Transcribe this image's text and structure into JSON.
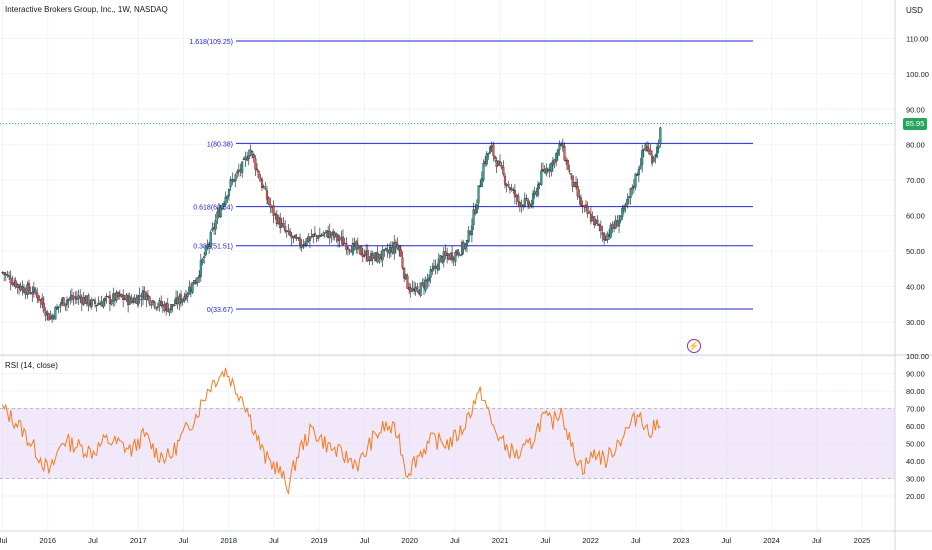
{
  "header": {
    "symbol_title": "Interactive Brokers Group, Inc., 1W, NASDAQ",
    "currency": "USD"
  },
  "price_badge": "85.95",
  "rsi": {
    "title": "RSI (14, close)",
    "band_color": "#e8d9f7",
    "line_color": "#f57c1f",
    "upper": 70,
    "lower": 30
  },
  "colors": {
    "up": "#26a69a",
    "down": "#ef5350",
    "fib": "#2225d4",
    "badge": "#26a65b"
  },
  "icons": {
    "bolt": "lightning-icon"
  },
  "chart_data": {
    "type": "candlestick",
    "x_ticks": [
      "Jul",
      "2016",
      "Jul",
      "2017",
      "Jul",
      "2018",
      "Jul",
      "2019",
      "Jul",
      "2020",
      "Jul",
      "2021",
      "Jul",
      "2022",
      "Jul",
      "2023",
      "Jul",
      "2024",
      "Jul",
      "2025"
    ],
    "price_ticks": [
      "110.00",
      "100.00",
      "90.00",
      "80.00",
      "70.00",
      "60.00",
      "50.00",
      "40.00",
      "30.00"
    ],
    "rsi_ticks": [
      "100.00",
      "90.00",
      "80.00",
      "70.00",
      "60.00",
      "50.00",
      "40.00",
      "30.00",
      "20.00"
    ],
    "fib_levels": [
      {
        "label": "1.618(109.25)",
        "value": 109.25
      },
      {
        "label": "1(80.38)",
        "value": 80.38
      },
      {
        "label": "0.618(62.54)",
        "value": 62.54
      },
      {
        "label": "0.382(51.51)",
        "value": 51.51
      },
      {
        "label": "0(33.67)",
        "value": 33.67
      }
    ],
    "last_price": 85.95,
    "price_path": [
      [
        "2015.50",
        44
      ],
      [
        "2015.70",
        40
      ],
      [
        "2015.90",
        38
      ],
      [
        "2016.05",
        31
      ],
      [
        "2016.20",
        36
      ],
      [
        "2016.40",
        37
      ],
      [
        "2016.55",
        35
      ],
      [
        "2016.70",
        36
      ],
      [
        "2016.85",
        37
      ],
      [
        "2017.00",
        36
      ],
      [
        "2017.15",
        38
      ],
      [
        "2017.30",
        35
      ],
      [
        "2017.45",
        34
      ],
      [
        "2017.60",
        37
      ],
      [
        "2017.75",
        42
      ],
      [
        "2017.90",
        52
      ],
      [
        "2018.00",
        60
      ],
      [
        "2018.15",
        69
      ],
      [
        "2018.30",
        74
      ],
      [
        "2018.38",
        79
      ],
      [
        "2018.50",
        70
      ],
      [
        "2018.62",
        62
      ],
      [
        "2018.80",
        55
      ],
      [
        "2018.95",
        52
      ],
      [
        "2019.10",
        54
      ],
      [
        "2019.30",
        55
      ],
      [
        "2019.50",
        52
      ],
      [
        "2019.65",
        50
      ],
      [
        "2019.80",
        48
      ],
      [
        "2019.95",
        49
      ],
      [
        "2020.10",
        52
      ],
      [
        "2020.20",
        41
      ],
      [
        "2020.30",
        38
      ],
      [
        "2020.45",
        42
      ],
      [
        "2020.60",
        48
      ],
      [
        "2020.75",
        49
      ],
      [
        "2020.90",
        52
      ],
      [
        "2021.00",
        62
      ],
      [
        "2021.10",
        75
      ],
      [
        "2021.18",
        79
      ],
      [
        "2021.35",
        70
      ],
      [
        "2021.50",
        64
      ],
      [
        "2021.65",
        63
      ],
      [
        "2021.78",
        72
      ],
      [
        "2021.90",
        75
      ],
      [
        "2022.00",
        80
      ],
      [
        "2022.12",
        70
      ],
      [
        "2022.25",
        62
      ],
      [
        "2022.40",
        58
      ],
      [
        "2022.50",
        54
      ],
      [
        "2022.62",
        57
      ],
      [
        "2022.75",
        62
      ],
      [
        "2022.88",
        72
      ],
      [
        "2022.98",
        80
      ],
      [
        "2023.05",
        76
      ],
      [
        "2023.12",
        79
      ],
      [
        "2023.17",
        86
      ]
    ],
    "rsi_path": [
      [
        "2015.50",
        70
      ],
      [
        "2015.70",
        60
      ],
      [
        "2015.90",
        45
      ],
      [
        "2016.05",
        33
      ],
      [
        "2016.20",
        52
      ],
      [
        "2016.40",
        48
      ],
      [
        "2016.55",
        45
      ],
      [
        "2016.70",
        52
      ],
      [
        "2016.85",
        50
      ],
      [
        "2017.00",
        46
      ],
      [
        "2017.15",
        55
      ],
      [
        "2017.30",
        44
      ],
      [
        "2017.45",
        42
      ],
      [
        "2017.60",
        55
      ],
      [
        "2017.75",
        66
      ],
      [
        "2017.90",
        82
      ],
      [
        "2018.00",
        88
      ],
      [
        "2018.10",
        92
      ],
      [
        "2018.20",
        82
      ],
      [
        "2018.30",
        76
      ],
      [
        "2018.40",
        62
      ],
      [
        "2018.55",
        42
      ],
      [
        "2018.70",
        36
      ],
      [
        "2018.82",
        25
      ],
      [
        "2018.95",
        46
      ],
      [
        "2019.10",
        58
      ],
      [
        "2019.30",
        48
      ],
      [
        "2019.50",
        42
      ],
      [
        "2019.65",
        38
      ],
      [
        "2019.80",
        52
      ],
      [
        "2019.95",
        60
      ],
      [
        "2020.10",
        56
      ],
      [
        "2020.20",
        33
      ],
      [
        "2020.35",
        44
      ],
      [
        "2020.50",
        52
      ],
      [
        "2020.70",
        50
      ],
      [
        "2020.85",
        58
      ],
      [
        "2021.00",
        75
      ],
      [
        "2021.08",
        79
      ],
      [
        "2021.20",
        60
      ],
      [
        "2021.35",
        48
      ],
      [
        "2021.50",
        43
      ],
      [
        "2021.65",
        50
      ],
      [
        "2021.78",
        65
      ],
      [
        "2021.90",
        62
      ],
      [
        "2022.00",
        70
      ],
      [
        "2022.12",
        48
      ],
      [
        "2022.25",
        36
      ],
      [
        "2022.40",
        45
      ],
      [
        "2022.52",
        40
      ],
      [
        "2022.65",
        50
      ],
      [
        "2022.80",
        60
      ],
      [
        "2022.92",
        68
      ],
      [
        "2023.02",
        55
      ],
      [
        "2023.10",
        60
      ],
      [
        "2023.17",
        66
      ]
    ]
  }
}
